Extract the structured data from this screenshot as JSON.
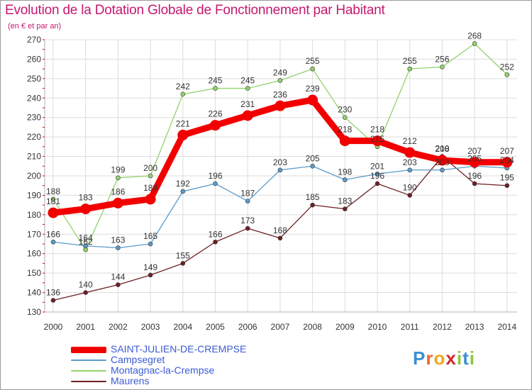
{
  "chart_data": {
    "type": "line",
    "title": "Evolution de la Dotation Globale de Fonctionnement par Habitant",
    "subtitle": "(en € et par an)",
    "xlabel": "",
    "ylabel": "",
    "ylim": [
      130,
      270
    ],
    "yticks": [
      130,
      140,
      150,
      160,
      170,
      180,
      190,
      200,
      210,
      220,
      230,
      240,
      250,
      260,
      270
    ],
    "grid": true,
    "legend_position": "bottom-left",
    "x": [
      "2000",
      "2001",
      "2002",
      "2003",
      "2004",
      "2005",
      "2006",
      "2007",
      "2008",
      "2009",
      "2010",
      "2011",
      "2012",
      "2013",
      "2014"
    ],
    "series": [
      {
        "name": "Maurens",
        "color": "#6e1f24",
        "values": [
          136,
          140,
          144,
          149,
          155,
          166,
          173,
          168,
          185,
          183,
          196,
          190,
          210,
          196,
          195
        ]
      },
      {
        "name": "Montagnac-la-Crempse",
        "color": "#92d36b",
        "values": [
          188,
          162,
          199,
          200,
          242,
          245,
          245,
          249,
          255,
          230,
          215,
          255,
          256,
          268,
          252
        ]
      },
      {
        "name": "Campsegret",
        "color": "#5b9bc9",
        "values": [
          166,
          164,
          163,
          165,
          192,
          196,
          187,
          203,
          205,
          198,
          201,
          203,
          203,
          205,
          204
        ]
      },
      {
        "name": "SAINT-JULIEN-DE-CREMPSE",
        "color": "#f20000",
        "values": [
          181,
          183,
          186,
          188,
          221,
          226,
          231,
          236,
          239,
          218,
          218,
          212,
          208,
          207,
          207
        ]
      }
    ]
  },
  "legend": {
    "items": [
      {
        "name": "SAINT-JULIEN-DE-CREMPSE",
        "color": "#f20000"
      },
      {
        "name": "Campsegret",
        "color": "#5b9bc9"
      },
      {
        "name": "Montagnac-la-Crempse",
        "color": "#92d36b"
      },
      {
        "name": "Maurens",
        "color": "#6e1f24"
      }
    ]
  },
  "logo": {
    "letters": [
      {
        "char": "P",
        "color": "#3b8fd4"
      },
      {
        "char": "r",
        "color": "#e8682a"
      },
      {
        "char": "o",
        "color": "#f2a71b"
      },
      {
        "char": "x",
        "color": "#d2262c"
      },
      {
        "char": "i",
        "color": "#8cc43f"
      },
      {
        "char": "t",
        "color": "#3b8fd4"
      },
      {
        "char": "i",
        "color": "#8cc43f"
      }
    ]
  }
}
